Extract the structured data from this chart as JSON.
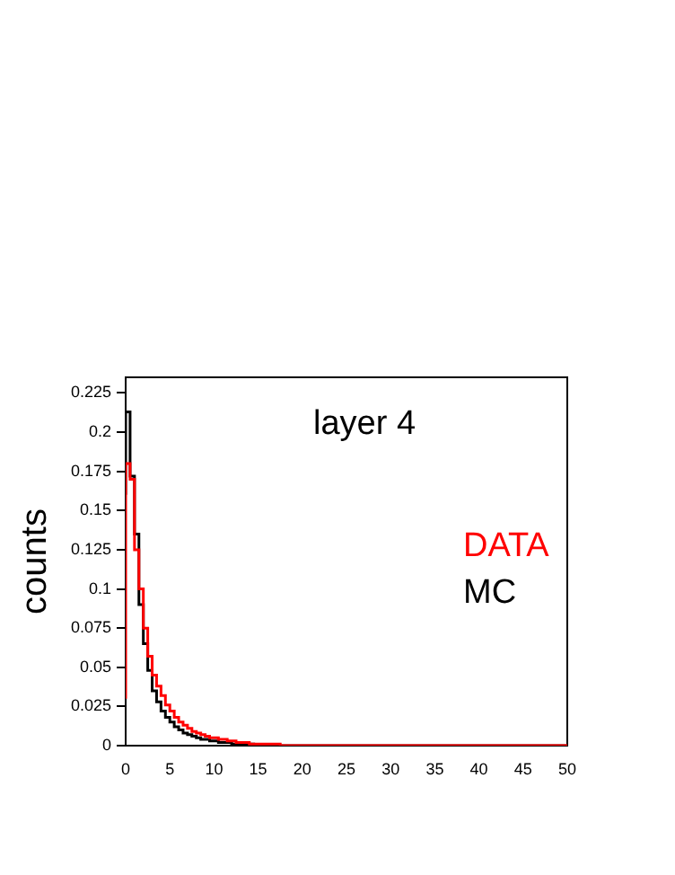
{
  "chart_data": {
    "type": "histogram",
    "title": "layer 4",
    "ylabel": "counts",
    "bins": [
      0,
      0.5,
      1,
      1.5,
      2,
      2.5,
      3,
      3.5,
      4,
      4.5,
      5,
      5.5,
      6,
      6.5,
      7,
      7.5,
      8,
      8.5,
      9,
      9.5,
      10,
      10.5,
      11,
      11.5,
      12,
      12.5,
      13,
      13.5,
      14,
      14.5,
      15,
      15.5,
      16,
      16.5,
      17,
      17.5,
      18,
      18.5,
      19,
      19.5,
      20,
      50
    ],
    "series": [
      {
        "name": "DATA",
        "color": "#ff0000",
        "values": [
          0.03,
          0.18,
          0.17,
          0.125,
          0.1,
          0.075,
          0.057,
          0.045,
          0.038,
          0.032,
          0.026,
          0.022,
          0.018,
          0.015,
          0.013,
          0.011,
          0.009,
          0.008,
          0.007,
          0.006,
          0.005,
          0.005,
          0.004,
          0.004,
          0.003,
          0.003,
          0.002,
          0.002,
          0.002,
          0.001,
          0.001,
          0.001,
          0.001,
          0.001,
          0.001,
          0.001,
          0,
          0,
          0,
          0,
          0
        ]
      },
      {
        "name": "MC",
        "color": "#000000",
        "values": [
          0.16,
          0.213,
          0.172,
          0.135,
          0.09,
          0.065,
          0.048,
          0.035,
          0.028,
          0.022,
          0.018,
          0.015,
          0.012,
          0.01,
          0.008,
          0.007,
          0.006,
          0.005,
          0.004,
          0.004,
          0.003,
          0.003,
          0.002,
          0.002,
          0.002,
          0.001,
          0.001,
          0.001,
          0.001,
          0.001,
          0,
          0,
          0,
          0,
          0,
          0,
          0,
          0,
          0,
          0,
          0
        ]
      }
    ],
    "xlim": [
      0,
      50
    ],
    "xticks": [
      0,
      5,
      10,
      15,
      20,
      25,
      30,
      35,
      40,
      45,
      50
    ],
    "ylim": [
      0,
      0.235
    ],
    "yticks": [
      0,
      0.025,
      0.05,
      0.075,
      0.1,
      0.125,
      0.15,
      0.175,
      0.2,
      0.225
    ],
    "legend": "right",
    "grid": false
  }
}
